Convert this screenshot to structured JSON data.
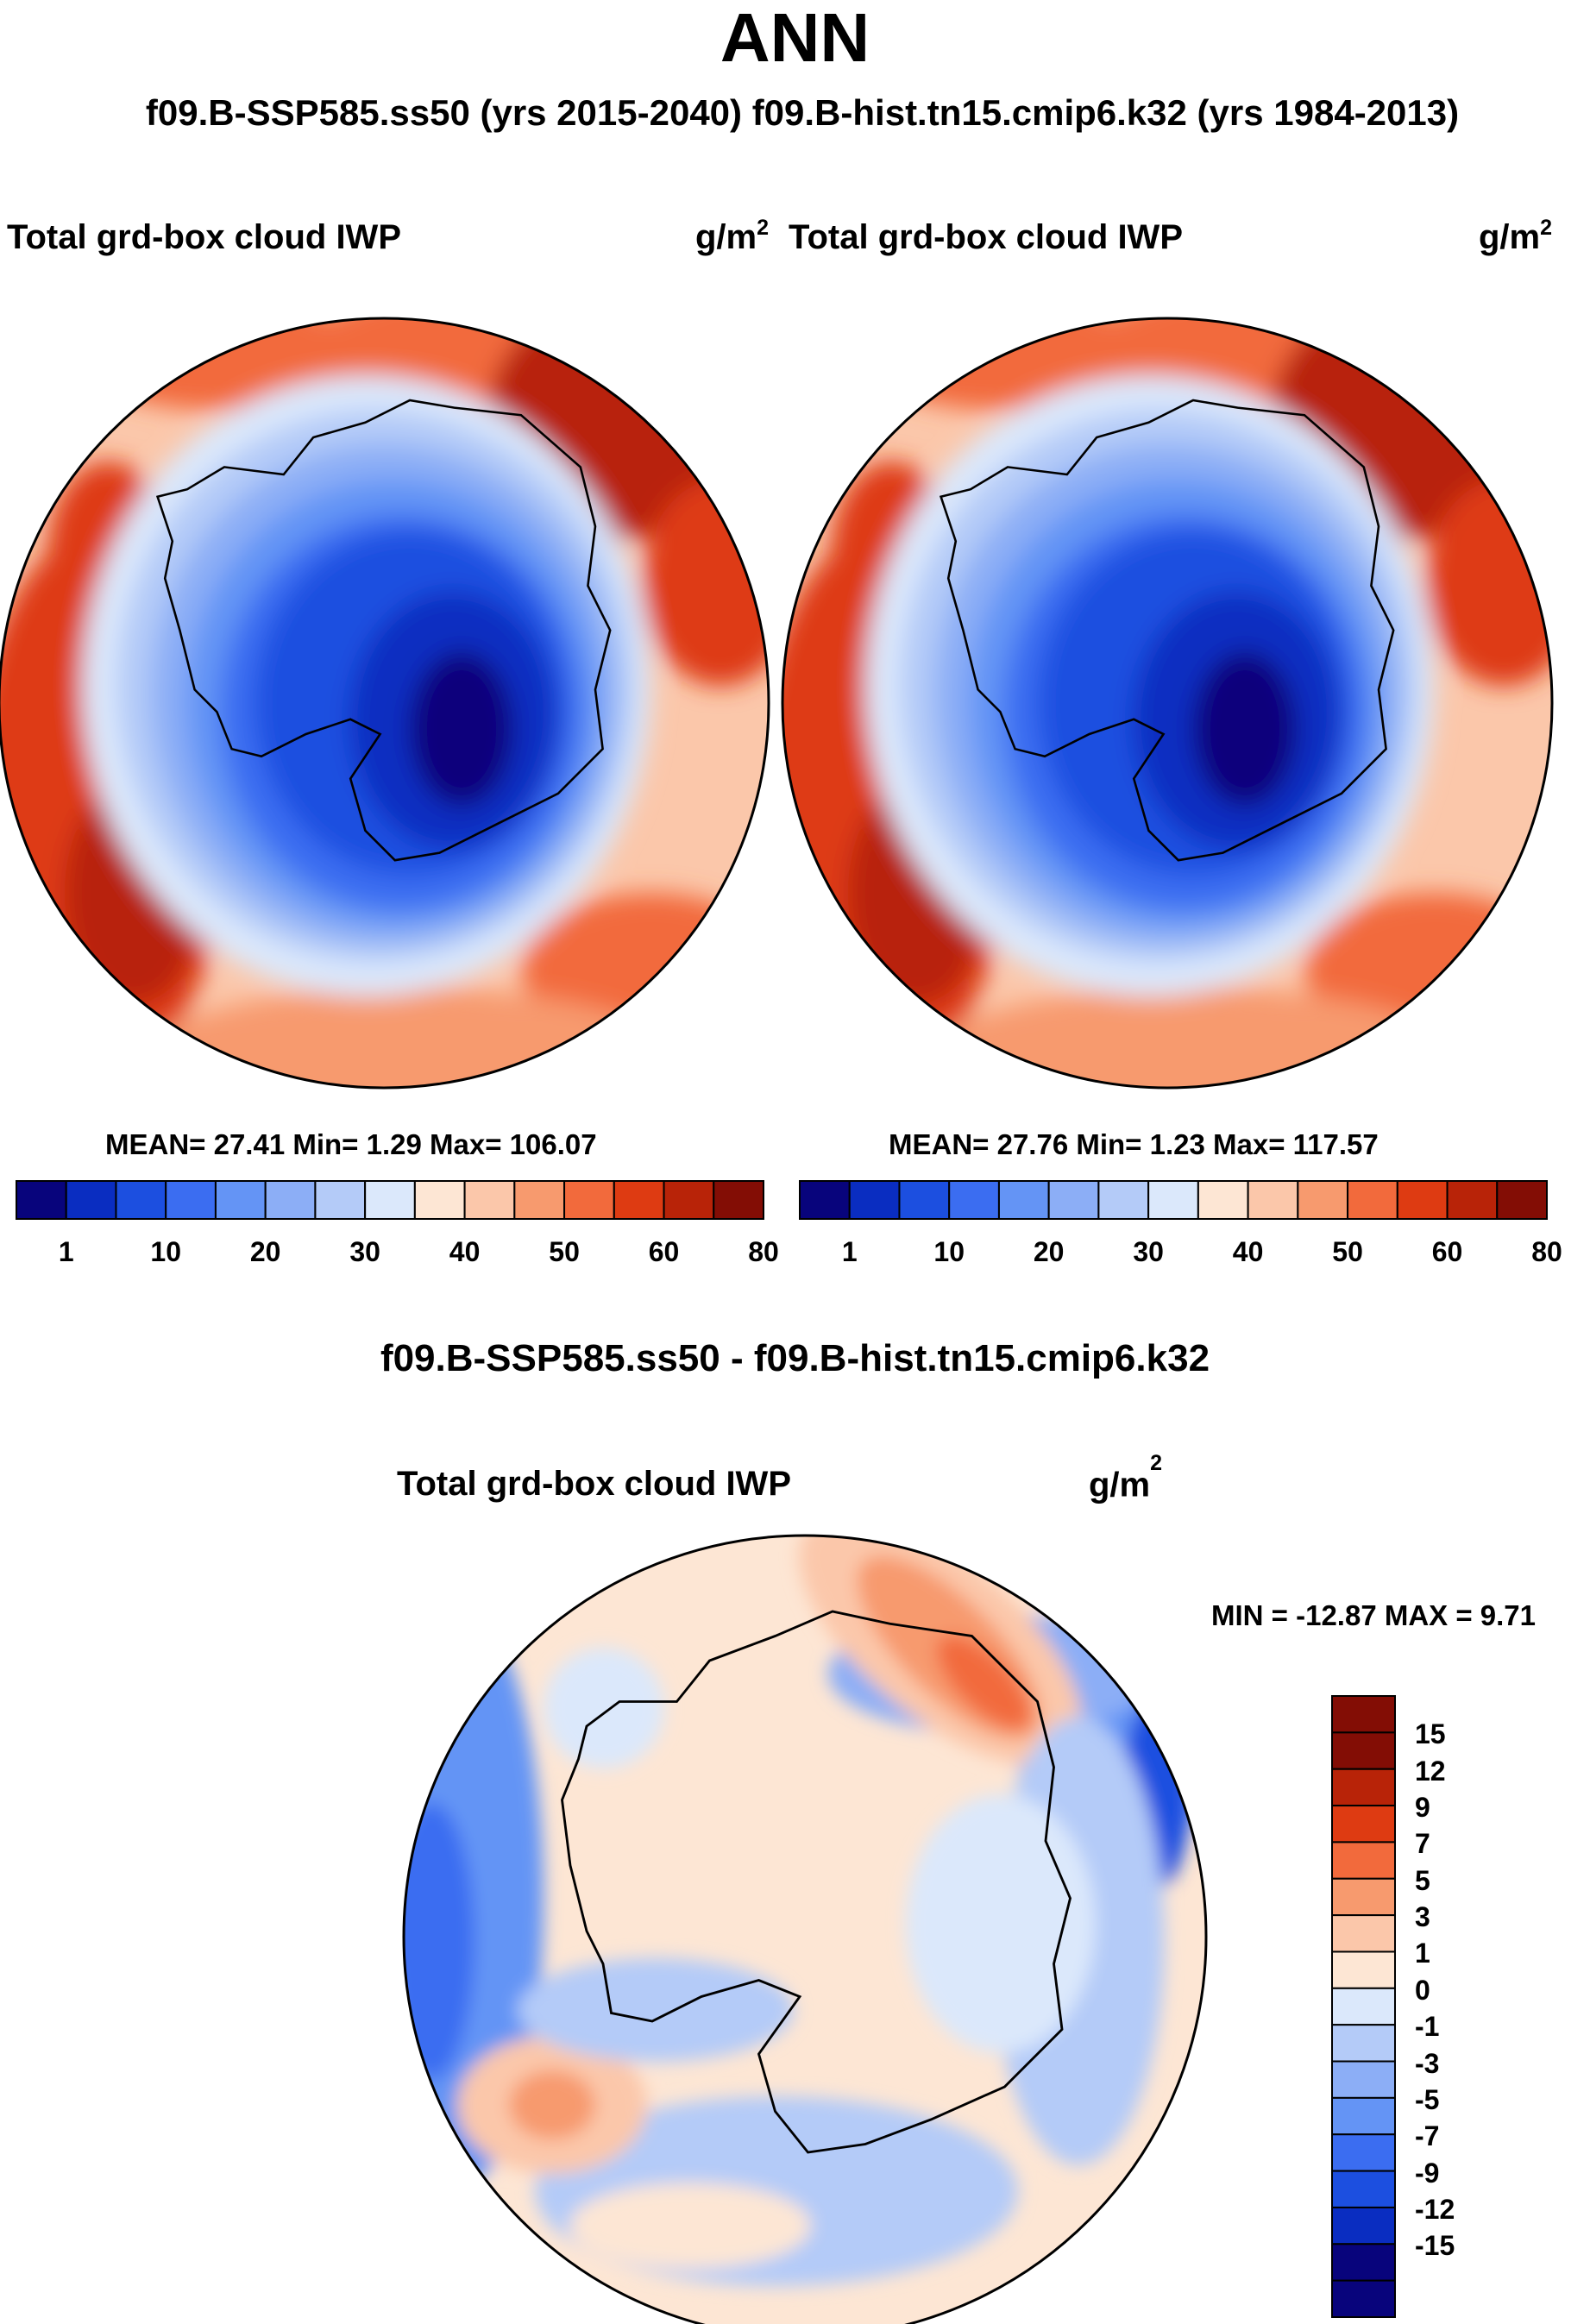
{
  "header": {
    "title": "ANN",
    "runs": "f09.B-SSP585.ss50 (yrs 2015-2040)  f09.B-hist.tn15.cmip6.k32 (yrs 1984-2013)"
  },
  "panels": [
    {
      "title": "Total grd-box cloud IWP",
      "units_base": "g/m",
      "units_exp": "2",
      "stats": "MEAN=  27.41  Min=    1.29  Max= 106.07"
    },
    {
      "title": "Total grd-box cloud IWP",
      "units_base": "g/m",
      "units_exp": "2",
      "stats": "MEAN=  27.76  Min=    1.23  Max= 117.57"
    }
  ],
  "colorbar_top": {
    "labels": [
      "1",
      "10",
      "20",
      "30",
      "40",
      "50",
      "60",
      "80"
    ],
    "colors": [
      "#08047c",
      "#0a2dc1",
      "#1c4fe0",
      "#3b6df1",
      "#6494f5",
      "#8caef6",
      "#b4cbf8",
      "#dbe8fb",
      "#fde6d4",
      "#fbc7aa",
      "#f79a6e",
      "#f26a3c",
      "#de3b12",
      "#b82308",
      "#830d05"
    ]
  },
  "diff": {
    "title": "f09.B-SSP585.ss50 - f09.B-hist.tn15.cmip6.k32",
    "subtitle": "Total grd-box cloud IWP",
    "units_base": "g/m",
    "units_exp": "2",
    "minmax": "MIN = -12.87 MAX =   9.71",
    "colorbar_labels": [
      "15",
      "12",
      "9",
      "7",
      "5",
      "3",
      "1",
      "0",
      "-1",
      "-3",
      "-5",
      "-7",
      "-9",
      "-12",
      "-15"
    ],
    "colorbar_colors": [
      "#830d05",
      "#b82308",
      "#de3b12",
      "#f26a3c",
      "#f79a6e",
      "#fbc7aa",
      "#fde6d4",
      "#dbe8fb",
      "#b4cbf8",
      "#8caef6",
      "#6494f5",
      "#3b6df1",
      "#1c4fe0",
      "#0a2dc1",
      "#08047c"
    ]
  }
}
